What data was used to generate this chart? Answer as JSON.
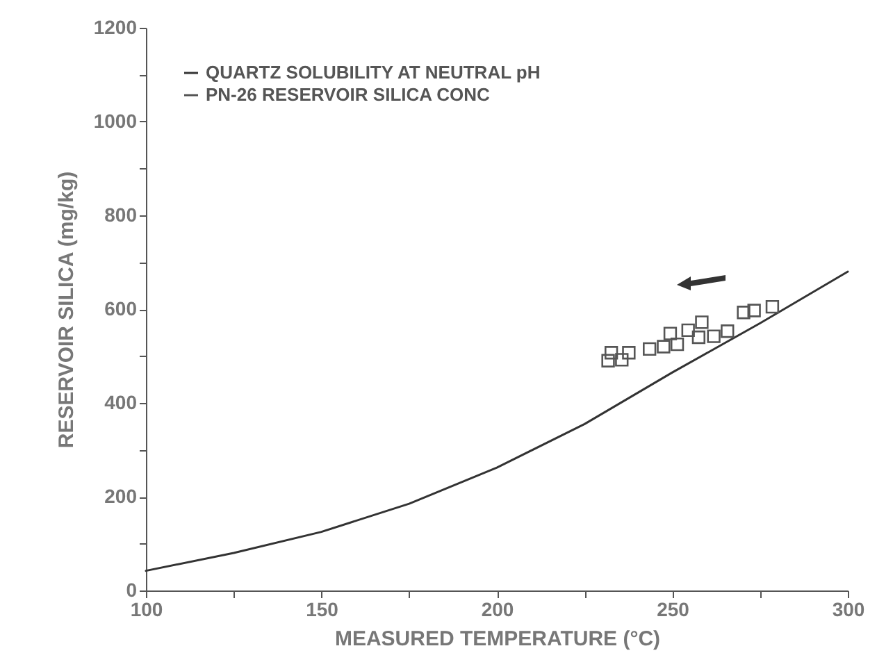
{
  "chart_data": {
    "type": "line",
    "xlabel": "MEASURED TEMPERATURE (°C)",
    "ylabel": "RESERVOIR SILICA (mg/kg)",
    "xlim": [
      100,
      300
    ],
    "ylim": [
      0,
      1200
    ],
    "xticks": [
      100,
      {
        "value": 125,
        "label": null
      },
      150,
      {
        "value": 175,
        "label": null
      },
      200,
      {
        "value": 225,
        "label": null
      },
      250,
      {
        "value": 275,
        "label": null
      },
      300
    ],
    "yticks": [
      0,
      {
        "value": 100,
        "label": null
      },
      200,
      {
        "value": 300,
        "label": null
      },
      400,
      {
        "value": 500,
        "label": null
      },
      600,
      {
        "value": 700,
        "label": null
      },
      800,
      {
        "value": 900,
        "label": null
      },
      1000,
      {
        "value": 1100,
        "label": null
      },
      1200
    ],
    "legend": "top left",
    "grid": false,
    "series": [
      {
        "name": "QUARTZ SOLUBILITY AT NEUTRAL pH",
        "type": "line",
        "color": "#333333",
        "line_style": "solid",
        "x": [
          100,
          125,
          150,
          175,
          200,
          225,
          250,
          275,
          300
        ],
        "values": [
          42,
          80,
          125,
          185,
          262,
          355,
          465,
          570,
          680
        ]
      },
      {
        "name": "PN-26 RESERVOIR SILICA CONC",
        "type": "scatter",
        "marker": "square",
        "color": "#555555",
        "x": [
          231.7,
          235.6,
          232.6,
          237.6,
          243.5,
          247.5,
          251.4,
          249.4,
          254.5,
          257.5,
          258.4,
          261.8,
          265.7,
          270.3,
          273.3,
          278.5
        ],
        "values": [
          490,
          492,
          507,
          507,
          515,
          520,
          525,
          548,
          555,
          540,
          572,
          542,
          553,
          593,
          597,
          605
        ]
      }
    ]
  }
}
